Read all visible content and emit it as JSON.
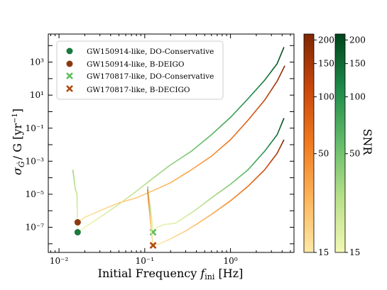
{
  "chart_data": {
    "type": "line",
    "xlabel": "Initial Frequency f_ini [Hz]",
    "xlabel_parts": {
      "main": "Initial Frequency ",
      "sym": "f",
      "sub": "ini",
      "unit": " [Hz]"
    },
    "ylabel": "σ_Ġ / G [yr⁻¹]",
    "ylabel_parts": {
      "sym": "σ",
      "sub": "Ġ",
      "rest": "/ G [yr",
      "sup": "−1",
      "close": "]"
    },
    "x_scale": "log",
    "y_scale": "log",
    "xlim": [
      0.0075,
      5.5
    ],
    "ylim": [
      3e-09,
      50000.0
    ],
    "x_ticks": [
      {
        "value": 0.01,
        "label": "10⁻²"
      },
      {
        "value": 0.1,
        "label": "10⁻¹"
      },
      {
        "value": 1,
        "label": "10⁰"
      }
    ],
    "y_ticks": [
      {
        "value": 1e-07,
        "label": "10⁻⁷"
      },
      {
        "value": 1e-05,
        "label": "10⁻⁵"
      },
      {
        "value": 0.001,
        "label": "10⁻³"
      },
      {
        "value": 0.1,
        "label": "10⁻¹"
      },
      {
        "value": 10.0,
        "label": "10¹"
      },
      {
        "value": 1000.0,
        "label": "10³"
      }
    ],
    "grid": false,
    "legend_position": "top-left",
    "series": [
      {
        "name": "GW150914-like, DO-Conservative",
        "color": "#1b7a3e",
        "marker": "circle",
        "colormap": "greens",
        "points": [
          [
            0.0145,
            0.0003
          ],
          [
            0.0155,
            2e-05
          ],
          [
            0.0162,
            1e-05
          ],
          [
            0.0165,
            1e-07
          ],
          [
            0.0165,
            5e-08
          ],
          [
            0.02,
            1e-07
          ],
          [
            0.03,
            4e-07
          ],
          [
            0.05,
            2.5e-06
          ],
          [
            0.08,
            1.5e-05
          ],
          [
            0.12,
            8e-05
          ],
          [
            0.2,
            0.0006
          ],
          [
            0.35,
            0.004
          ],
          [
            0.6,
            0.04
          ],
          [
            1.0,
            0.45
          ],
          [
            1.6,
            6
          ],
          [
            2.5,
            80
          ],
          [
            3.5,
            800
          ],
          [
            4.2,
            8000
          ]
        ],
        "marker_point": [
          0.0165,
          5e-08
        ]
      },
      {
        "name": "GW150914-like, B-DEIGO",
        "color": "#8b3a0e",
        "marker": "circle",
        "colormap": "oranges",
        "points": [
          [
            0.0165,
            2e-07
          ],
          [
            0.02,
            4e-07
          ],
          [
            0.03,
            1e-06
          ],
          [
            0.05,
            3e-06
          ],
          [
            0.08,
            6e-06
          ],
          [
            0.12,
            1.5e-05
          ],
          [
            0.2,
            5e-05
          ],
          [
            0.35,
            0.0003
          ],
          [
            0.6,
            0.002
          ],
          [
            1.0,
            0.02
          ],
          [
            1.6,
            0.3
          ],
          [
            2.5,
            5
          ],
          [
            3.5,
            70
          ],
          [
            4.3,
            600
          ]
        ],
        "marker_point": [
          0.0165,
          2e-07
        ]
      },
      {
        "name": "GW170817-like, DO-Conservative",
        "color": "#5cbf5c",
        "marker": "x",
        "colormap": "greens",
        "points": [
          [
            0.108,
            3e-05
          ],
          [
            0.11,
            1e-05
          ],
          [
            0.115,
            2e-06
          ],
          [
            0.12,
            4e-07
          ],
          [
            0.125,
            5e-08
          ],
          [
            0.14,
            1e-07
          ],
          [
            0.17,
            1.5e-07
          ],
          [
            0.2,
            1.6e-07
          ],
          [
            0.23,
            1.8e-07
          ],
          [
            0.28,
            3.5e-07
          ],
          [
            0.4,
            1.2e-06
          ],
          [
            0.6,
            6e-06
          ],
          [
            1.0,
            4e-05
          ],
          [
            1.6,
            0.0003
          ],
          [
            2.5,
            0.004
          ],
          [
            3.5,
            0.04
          ],
          [
            4.2,
            0.4
          ]
        ],
        "marker_point": [
          0.125,
          5e-08
        ]
      },
      {
        "name": "GW170817-like, B-DECIGO",
        "color": "#b04a10",
        "marker": "x",
        "colormap": "oranges",
        "points": [
          [
            0.108,
            2e-05
          ],
          [
            0.11,
            5e-06
          ],
          [
            0.115,
            5e-07
          ],
          [
            0.12,
            5e-08
          ],
          [
            0.125,
            8e-09
          ],
          [
            0.15,
            1e-08
          ],
          [
            0.2,
            2e-08
          ],
          [
            0.3,
            6e-08
          ],
          [
            0.4,
            1.5e-07
          ],
          [
            0.6,
            6e-07
          ],
          [
            1.0,
            4e-06
          ],
          [
            1.6,
            3e-05
          ],
          [
            2.5,
            0.0003
          ],
          [
            3.5,
            0.003
          ],
          [
            4.2,
            0.02
          ]
        ],
        "marker_point": [
          0.125,
          8e-09
        ]
      }
    ],
    "colorbars": [
      {
        "name": "oranges",
        "ticks": [
          15,
          50,
          100,
          150,
          200
        ],
        "range": [
          15,
          215
        ],
        "stops": [
          "#fde9a8",
          "#fdb45a",
          "#f07a20",
          "#c9470b",
          "#7f2704"
        ]
      },
      {
        "name": "greens",
        "ticks": [
          15,
          50,
          100,
          150,
          200
        ],
        "range": [
          15,
          215
        ],
        "stops": [
          "#f2f8b4",
          "#b8e08a",
          "#64bc6a",
          "#1f8a4a",
          "#00441b"
        ],
        "label": "SNR"
      }
    ]
  }
}
